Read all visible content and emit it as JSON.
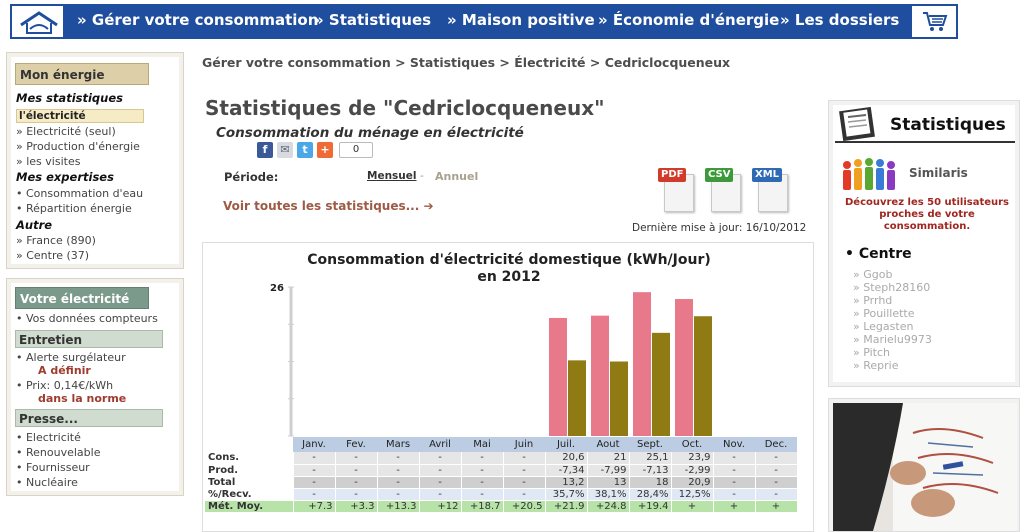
{
  "nav": {
    "items": [
      "» Gérer votre consommation",
      "» Statistiques",
      "» Maison positive",
      "» Économie d'énergie",
      "» Les dossiers"
    ]
  },
  "left_sidebar": {
    "mon_energie": "Mon énergie",
    "mes_statistiques": "Mes statistiques",
    "selected": "l'électricité",
    "stats_items": [
      "» Electricité (seul)",
      "» Production d'énergie",
      "» les visites"
    ],
    "mes_expertises": "Mes expertises",
    "expertise_items": [
      "• Consommation d'eau",
      "• Répartition énergie"
    ],
    "autre": "Autre",
    "autre_items": [
      "» France (890)",
      "» Centre (37)"
    ],
    "votre_electricite": "Votre électricité",
    "compteurs": "• Vos données compteurs",
    "entretien": "Entretien",
    "alerte": "• Alerte surgélateur",
    "alerte_value": "A définir",
    "prix": "• Prix: 0,14€/kWh",
    "prix_value": "dans la norme",
    "presse": "Presse...",
    "presse_items": [
      "• Electricité",
      "• Renouvelable",
      "• Fournisseur",
      "• Nucléaire"
    ]
  },
  "breadcrumb": "Gérer votre consommation >  Statistiques >  Électricité > Cedriclocqueneux",
  "title": "Statistiques de \"Cedriclocqueneux\"",
  "subtitle": "Consommation du ménage en électricité",
  "share_count": "0",
  "periode": {
    "label": "Période:",
    "monthly": "Mensuel",
    "separator": "-",
    "annual": "Annuel"
  },
  "all_stats_link": "Voir toutes les statistiques... ➔",
  "exports": [
    "PDF",
    "CSV",
    "XML"
  ],
  "last_update": "Dernière mise à jour: 16/10/2012",
  "chart_data": {
    "type": "bar",
    "title": "Consommation d'électricité domestique (kWh/Jour)",
    "subtitle": "en 2012",
    "ymax_label": "26",
    "ylim": [
      0,
      26
    ],
    "categories": [
      "Janv.",
      "Fev.",
      "Mars",
      "Avril",
      "Mai",
      "Juin",
      "Juil.",
      "Aout",
      "Sept.",
      "Oct.",
      "Nov.",
      "Dec."
    ],
    "series": [
      {
        "name": "Cons.",
        "color": "#e8798a",
        "values": [
          null,
          null,
          null,
          null,
          null,
          null,
          20.6,
          21,
          25.1,
          23.9,
          null,
          null
        ]
      },
      {
        "name": "Total",
        "color": "#8f7a14",
        "values": [
          null,
          null,
          null,
          null,
          null,
          null,
          13.2,
          13,
          18,
          20.9,
          null,
          null
        ]
      }
    ],
    "table": {
      "rows": [
        {
          "label": "Cons.",
          "cls": "cons",
          "values": [
            "-",
            "-",
            "-",
            "-",
            "-",
            "-",
            "20,6",
            "21",
            "25,1",
            "23,9",
            "-",
            "-"
          ]
        },
        {
          "label": "Prod.",
          "cls": "prod",
          "values": [
            "-",
            "-",
            "-",
            "-",
            "-",
            "-",
            "-7,34",
            "-7,99",
            "-7,13",
            "-2,99",
            "-",
            "-"
          ]
        },
        {
          "label": "Total",
          "cls": "total",
          "values": [
            "-",
            "-",
            "-",
            "-",
            "-",
            "-",
            "13,2",
            "13",
            "18",
            "20,9",
            "-",
            "-"
          ]
        },
        {
          "label": "%/Recv.",
          "cls": "recv",
          "values": [
            "-",
            "-",
            "-",
            "-",
            "-",
            "-",
            "35,7%",
            "38,1%",
            "28,4%",
            "12,5%",
            "-",
            "-"
          ]
        },
        {
          "label": "Mét. Moy.",
          "cls": "moy",
          "values": [
            "+7.3",
            "+3.3",
            "+13.3",
            "+12",
            "+18.7",
            "+20.5",
            "+21.9",
            "+24.8",
            "+19.4",
            "+",
            "+",
            "+"
          ]
        }
      ]
    }
  },
  "right_sidebar": {
    "title": "Statistiques",
    "similaris": "Similaris",
    "discover": "Découvrez les 50 utilisateurs proches de votre consommation.",
    "centre": "• Centre",
    "users": [
      "» Ggob",
      "» Steph28160",
      "» Prrhd",
      "» Pouillette",
      "» Legasten",
      "» Marielu9973",
      "» Pitch",
      "» Reprie"
    ]
  },
  "colors": {
    "nav_bg": "#1f4e9e",
    "accent_red": "#9e3b2d",
    "bar_cons": "#e8798a",
    "bar_total": "#8f7a14"
  }
}
